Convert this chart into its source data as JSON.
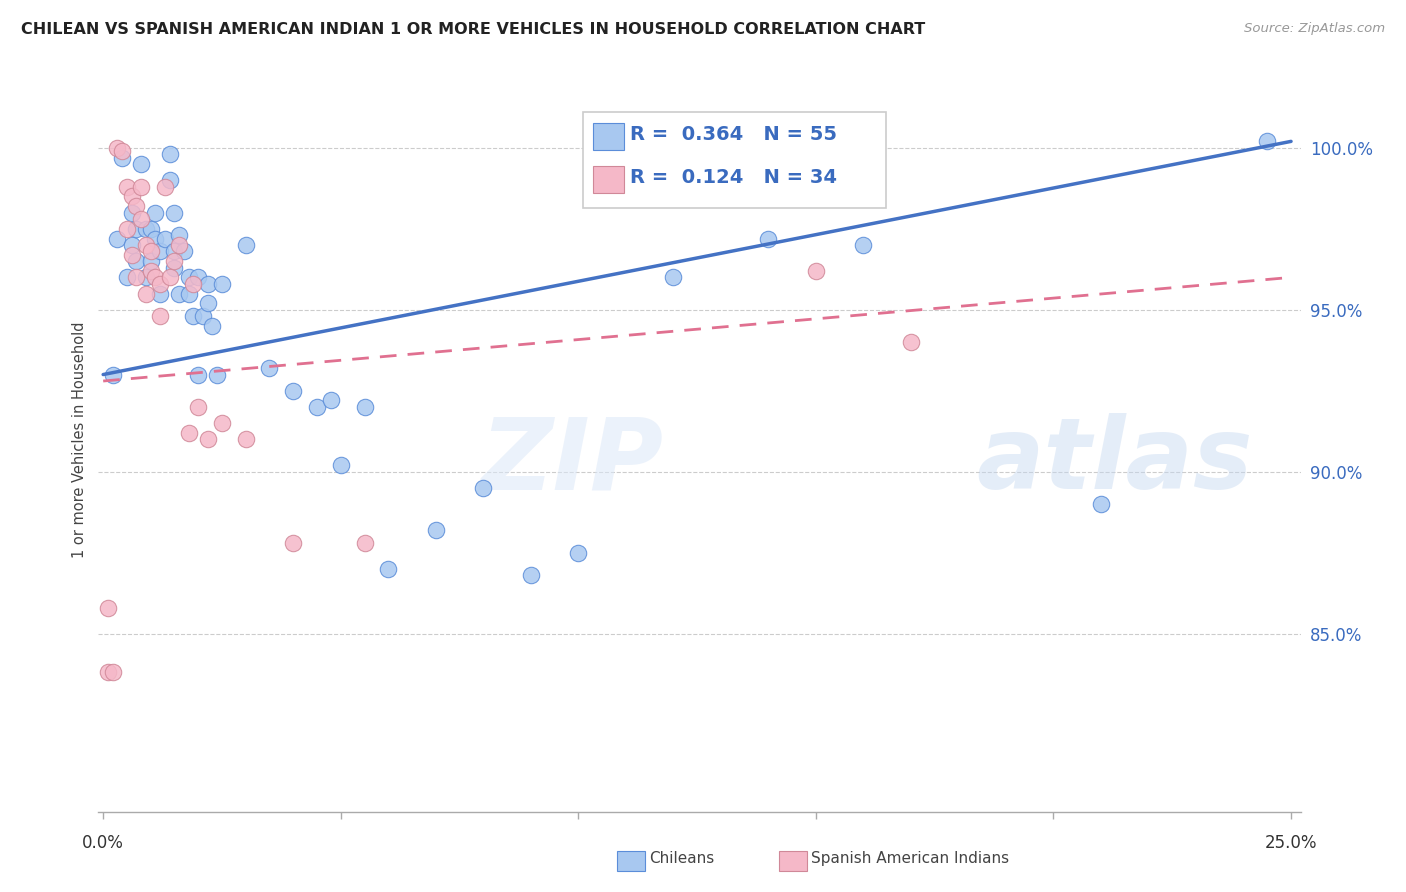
{
  "title": "CHILEAN VS SPANISH AMERICAN INDIAN 1 OR MORE VEHICLES IN HOUSEHOLD CORRELATION CHART",
  "source": "Source: ZipAtlas.com",
  "ylabel": "1 or more Vehicles in Household",
  "xlim": [
    -0.001,
    0.252
  ],
  "ylim": [
    0.795,
    1.025
  ],
  "ytick_values": [
    0.85,
    0.9,
    0.95,
    1.0
  ],
  "ytick_labels": [
    "85.0%",
    "90.0%",
    "95.0%",
    "100.0%"
  ],
  "xtick_values": [
    0.0,
    0.05,
    0.1,
    0.15,
    0.2,
    0.25
  ],
  "xlabel_show": [
    "0.0%",
    "25.0%"
  ],
  "legend1_r": "0.364",
  "legend1_n": "55",
  "legend2_r": "0.124",
  "legend2_n": "34",
  "blue_fill": "#a8c8f0",
  "blue_edge": "#5b8dd9",
  "pink_fill": "#f5b8c8",
  "pink_edge": "#d08898",
  "line_blue_color": "#4472c4",
  "line_pink_color": "#e07090",
  "blue_line_x": [
    0.0,
    0.25
  ],
  "blue_line_y": [
    0.93,
    1.002
  ],
  "pink_line_x": [
    0.0,
    0.25
  ],
  "pink_line_y": [
    0.928,
    0.96
  ],
  "blue_scatter_x": [
    0.002,
    0.003,
    0.004,
    0.005,
    0.006,
    0.006,
    0.007,
    0.007,
    0.008,
    0.009,
    0.009,
    0.01,
    0.01,
    0.011,
    0.011,
    0.012,
    0.012,
    0.013,
    0.014,
    0.014,
    0.015,
    0.015,
    0.015,
    0.016,
    0.016,
    0.017,
    0.018,
    0.018,
    0.019,
    0.02,
    0.02,
    0.021,
    0.022,
    0.022,
    0.023,
    0.024,
    0.025,
    0.03,
    0.035,
    0.04,
    0.045,
    0.048,
    0.05,
    0.055,
    0.06,
    0.07,
    0.08,
    0.09,
    0.1,
    0.12,
    0.14,
    0.155,
    0.16,
    0.21,
    0.245
  ],
  "blue_scatter_y": [
    0.93,
    0.972,
    0.997,
    0.96,
    0.98,
    0.97,
    0.975,
    0.965,
    0.995,
    0.96,
    0.975,
    0.975,
    0.965,
    0.98,
    0.972,
    0.968,
    0.955,
    0.972,
    0.99,
    0.998,
    0.98,
    0.968,
    0.963,
    0.955,
    0.973,
    0.968,
    0.955,
    0.96,
    0.948,
    0.96,
    0.93,
    0.948,
    0.958,
    0.952,
    0.945,
    0.93,
    0.958,
    0.97,
    0.932,
    0.925,
    0.92,
    0.922,
    0.902,
    0.92,
    0.87,
    0.882,
    0.895,
    0.868,
    0.875,
    0.96,
    0.972,
    0.988,
    0.97,
    0.89,
    1.002
  ],
  "pink_scatter_x": [
    0.001,
    0.001,
    0.002,
    0.003,
    0.004,
    0.005,
    0.005,
    0.006,
    0.006,
    0.007,
    0.007,
    0.008,
    0.008,
    0.009,
    0.009,
    0.01,
    0.01,
    0.011,
    0.012,
    0.012,
    0.013,
    0.014,
    0.015,
    0.016,
    0.018,
    0.019,
    0.02,
    0.022,
    0.025,
    0.03,
    0.04,
    0.055,
    0.15,
    0.17
  ],
  "pink_scatter_y": [
    0.858,
    0.838,
    0.838,
    1.0,
    0.999,
    0.975,
    0.988,
    0.967,
    0.985,
    0.96,
    0.982,
    0.978,
    0.988,
    0.97,
    0.955,
    0.962,
    0.968,
    0.96,
    0.958,
    0.948,
    0.988,
    0.96,
    0.965,
    0.97,
    0.912,
    0.958,
    0.92,
    0.91,
    0.915,
    0.91,
    0.878,
    0.878,
    0.962,
    0.94
  ]
}
